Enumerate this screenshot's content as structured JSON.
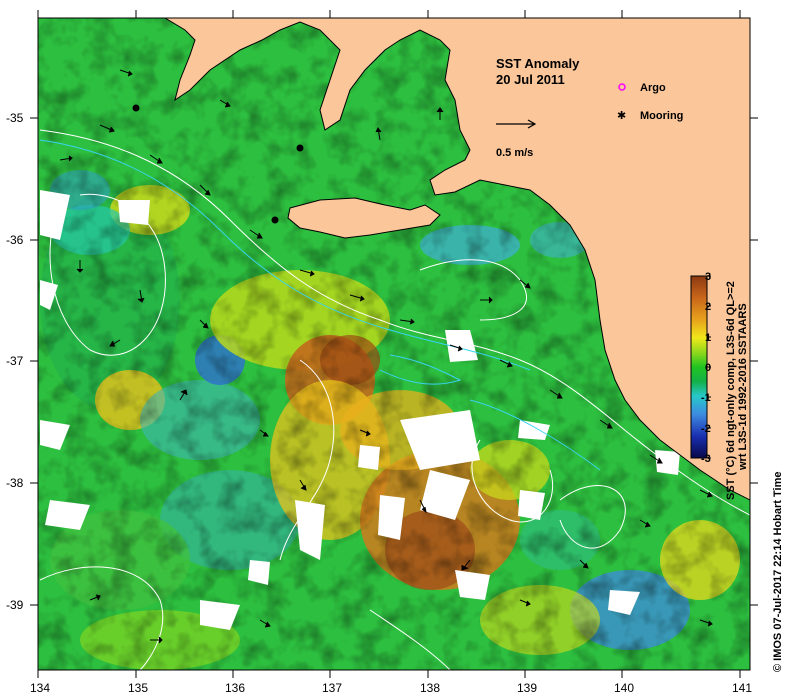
{
  "figure": {
    "title_line1": "SST Anomaly",
    "title_line2": "20 Jul 2011",
    "velocity_scale_label": "0.5 m/s",
    "colorbar_caption_line1": "SST (°C) 6d ngt-only comp, L3S-6d QL>=2",
    "colorbar_caption_line2": "wrt L3S-1d 1992-2016 SSTAARS",
    "copyright_text": "© IMOS 07-Jul-2017 22:14 Hobart Time"
  },
  "legend": {
    "items": [
      {
        "label": "Argo",
        "symbol": "open-circle",
        "color": "#ff00ff"
      },
      {
        "label": "Mooring",
        "symbol": "star",
        "color": "#000000"
      }
    ]
  },
  "axes": {
    "x_ticks": [
      "134",
      "135",
      "136",
      "137",
      "138",
      "139",
      "140",
      "141"
    ],
    "y_ticks": [
      "-35",
      "-36",
      "-37",
      "-38",
      "-39"
    ],
    "xlim": [
      134,
      141.3
    ],
    "ylim": [
      -39.6,
      -34.2
    ]
  },
  "colorbar": {
    "ticks": [
      "3",
      "2",
      "1",
      "0",
      "-1",
      "-2",
      "-3"
    ],
    "range": [
      -3,
      3
    ],
    "colors": [
      "#08084a",
      "#1a2fb0",
      "#3d8be0",
      "#27c9c9",
      "#13b04a",
      "#21c421",
      "#8fd81c",
      "#f0e81a",
      "#e8a21c",
      "#c9661a",
      "#8c3a12"
    ]
  },
  "moorings": [
    {
      "lon": 135.0,
      "lat": -34.95
    },
    {
      "lon": 136.68,
      "lat": -35.25
    },
    {
      "lon": 136.42,
      "lat": -35.85
    }
  ],
  "colors": {
    "land": "#fbc79a",
    "sea_base": "#2dbf3f",
    "contour_white": "#ffffff",
    "contour_cyan": "#38d4f0"
  }
}
